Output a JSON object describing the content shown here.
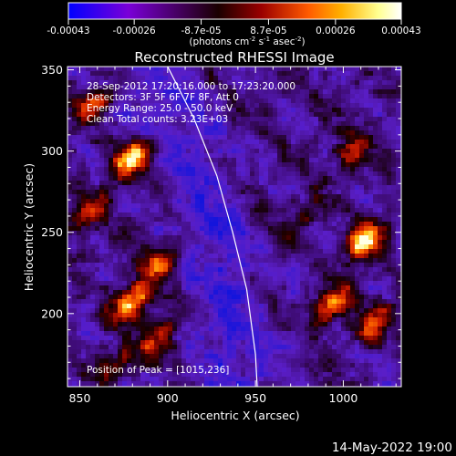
{
  "colorbar": {
    "tick_labels": [
      "-0.00043",
      "-0.00026",
      "-8.7e-05",
      "8.7e-05",
      "0.00026",
      "0.00043"
    ],
    "ticks": [
      -0.00043,
      -0.00026,
      -8.7e-05,
      8.7e-05,
      0.00026,
      0.00043
    ],
    "range": [
      -0.00043,
      0.00043
    ],
    "unit_main": "(photons cm",
    "unit_exp1": "-2",
    "unit_mid": " s",
    "unit_exp2": "-1",
    "unit_end": " asec",
    "unit_exp3": "-2",
    "unit_close": ")",
    "colors": [
      "#0000ff",
      "#7a00d8",
      "#1a0000",
      "#9b0000",
      "#ff5a00",
      "#ffb000",
      "#ffff90",
      "#ffffff"
    ]
  },
  "chart_data": {
    "type": "heatmap",
    "title": "Reconstructed RHESSI Image",
    "xlabel": "Heliocentric X (arcsec)",
    "ylabel": "Heliocentric Y (arcsec)",
    "xlim": [
      843,
      1033
    ],
    "ylim": [
      155,
      352
    ],
    "x_ticks": [
      850,
      900,
      950,
      1000
    ],
    "y_ticks": [
      200,
      250,
      300,
      350
    ],
    "limb": [
      [
        900,
        352
      ],
      [
        915,
        320
      ],
      [
        928,
        285
      ],
      [
        937,
        250
      ],
      [
        945,
        215
      ],
      [
        950,
        175
      ],
      [
        951,
        155
      ]
    ],
    "sources": [
      {
        "x": 880,
        "y": 295,
        "value": 1.0
      },
      {
        "x": 1012,
        "y": 245,
        "value": 1.0
      },
      {
        "x": 880,
        "y": 208,
        "value": 0.9
      },
      {
        "x": 993,
        "y": 205,
        "value": 0.75
      },
      {
        "x": 895,
        "y": 230,
        "value": 0.6
      },
      {
        "x": 895,
        "y": 185,
        "value": 0.55
      },
      {
        "x": 1018,
        "y": 195,
        "value": 0.6
      },
      {
        "x": 860,
        "y": 330,
        "value": 0.55
      },
      {
        "x": 855,
        "y": 262,
        "value": 0.5
      },
      {
        "x": 870,
        "y": 168,
        "value": 0.45
      },
      {
        "x": 1005,
        "y": 300,
        "value": 0.4
      },
      {
        "x": 980,
        "y": 262,
        "value": 0.35
      }
    ]
  },
  "annotations": {
    "time_range": "28-Sep-2012 17:20:16.000 to 17:23:20.000",
    "detectors": "Detectors: 3F 5F 6F 7F 8F, Att 0",
    "energy": "Energy Range: 25.0 - 50.0 keV",
    "clean": "Clean    Total counts: 3.23E+03",
    "peak": "Position of Peak = [1015,236]"
  },
  "footer": {
    "timestamp": "14-May-2022 19:00"
  }
}
